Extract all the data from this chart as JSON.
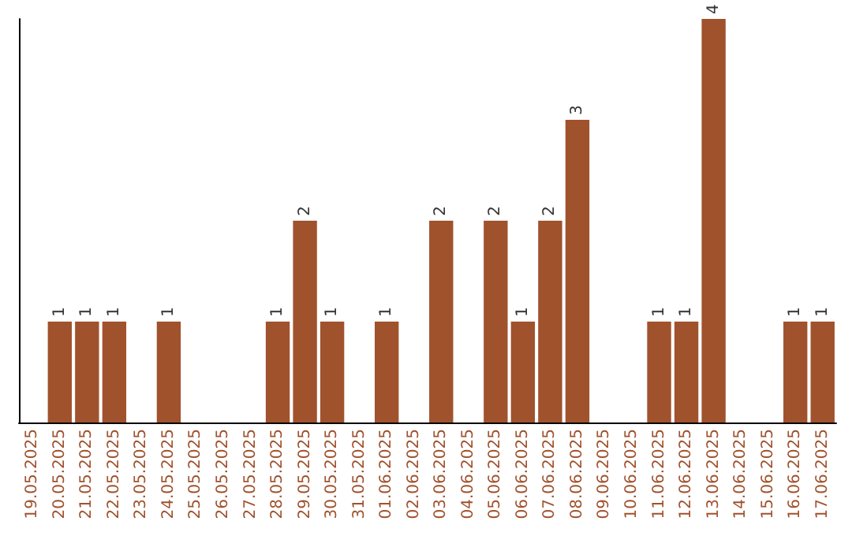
{
  "chart_data": {
    "type": "bar",
    "categories": [
      "19.05.2025",
      "20.05.2025",
      "21.05.2025",
      "22.05.2025",
      "23.05.2025",
      "24.05.2025",
      "25.05.2025",
      "26.05.2025",
      "27.05.2025",
      "28.05.2025",
      "29.05.2025",
      "30.05.2025",
      "31.05.2025",
      "01.06.2025",
      "02.06.2025",
      "03.06.2025",
      "04.06.2025",
      "05.06.2025",
      "06.06.2025",
      "07.06.2025",
      "08.06.2025",
      "09.06.2025",
      "10.06.2025",
      "11.06.2025",
      "12.06.2025",
      "13.06.2025",
      "14.06.2025",
      "15.06.2025",
      "16.06.2025",
      "17.06.2025"
    ],
    "values": [
      0,
      1,
      1,
      1,
      0,
      1,
      0,
      0,
      0,
      1,
      2,
      1,
      0,
      1,
      0,
      2,
      0,
      2,
      1,
      2,
      3,
      0,
      0,
      1,
      1,
      4,
      0,
      0,
      1,
      1
    ],
    "value_labels": [
      null,
      "1",
      "1",
      "1",
      null,
      "1",
      null,
      null,
      null,
      "1",
      "2",
      "1",
      null,
      "1",
      null,
      "2",
      null,
      "2",
      "1",
      "2",
      "3",
      null,
      null,
      "1",
      "1",
      "4",
      null,
      null,
      "1",
      "1"
    ],
    "color": "#a0522d",
    "ylim": [
      0,
      4
    ],
    "grid": false,
    "tick_labels": "x"
  }
}
